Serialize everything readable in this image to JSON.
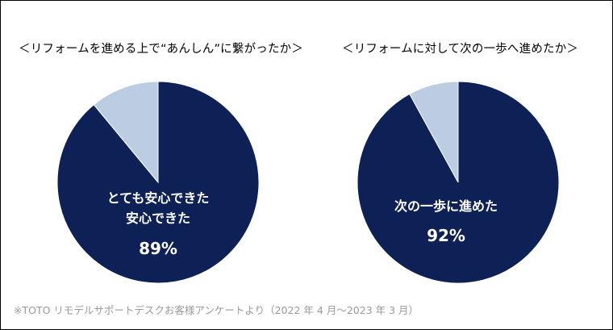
{
  "footnote": "※TOTO リモデルサポートデスクお客様アンケートより（2022 年 4 月～2023 年 3 月）",
  "colors": {
    "primary": "#0e2157",
    "secondary": "#bccde3"
  },
  "chart_data": [
    {
      "type": "pie",
      "title": "＜リフォームを進める上で“あんしん”に繋がったか＞",
      "slices": [
        {
          "label": "とても安心できた 安心できた",
          "value": 89
        },
        {
          "label": "",
          "value": 11
        }
      ],
      "inner_label_lines": [
        "とても安心できた",
        "安心できた"
      ],
      "value_label": "89%"
    },
    {
      "type": "pie",
      "title": "＜リフォームに対して次の一歩へ進めたか＞",
      "slices": [
        {
          "label": "次の一歩に進めた",
          "value": 92
        },
        {
          "label": "",
          "value": 8
        }
      ],
      "inner_label_lines": [
        "次の一歩に進めた"
      ],
      "value_label": "92%"
    }
  ]
}
